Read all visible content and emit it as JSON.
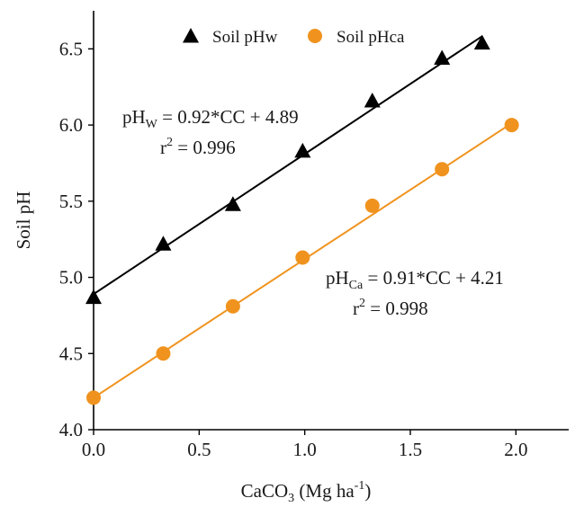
{
  "chart_data": {
    "type": "scatter",
    "xlabel": "CaCO₃ (Mg ha⁻¹)",
    "xlabel_parts": {
      "base": "CaCO",
      "sub": "3",
      "mid": " (Mg ha",
      "sup": "-1",
      "end": ")"
    },
    "ylabel": "Soil pH",
    "xlim": [
      0.0,
      2.25
    ],
    "ylim": [
      4.0,
      6.75
    ],
    "xticks": [
      "0.0",
      "0.5",
      "1.0",
      "1.5",
      "2.0"
    ],
    "yticks": [
      "4.0",
      "4.5",
      "5.0",
      "5.5",
      "6.0",
      "6.5"
    ],
    "legend_position": "top",
    "series": [
      {
        "name": "Soil pHw",
        "marker": "triangle",
        "color": "#000000",
        "x": [
          0.0,
          0.33,
          0.66,
          0.99,
          1.32,
          1.65,
          1.84
        ],
        "y": [
          4.87,
          5.22,
          5.48,
          5.83,
          6.16,
          6.44,
          6.54
        ],
        "fit": {
          "slope": 0.92,
          "intercept": 4.89,
          "x_range": [
            0.0,
            1.84
          ]
        }
      },
      {
        "name": "Soil pHca",
        "marker": "circle",
        "color": "#f0931e",
        "x": [
          0.0,
          0.33,
          0.66,
          0.99,
          1.32,
          1.65,
          1.98
        ],
        "y": [
          4.21,
          4.5,
          4.81,
          5.13,
          5.47,
          5.71,
          6.0
        ],
        "fit": {
          "slope": 0.91,
          "intercept": 4.21,
          "x_range": [
            0.0,
            1.98
          ]
        }
      }
    ],
    "annotations": [
      {
        "id": "w",
        "base": "pH",
        "sub": "W",
        "equation": " = 0.92*CC + 4.89",
        "r2": "0.996"
      },
      {
        "id": "ca",
        "base": "pH",
        "sub": "Ca",
        "equation": " = 0.91*CC + 4.21",
        "r2": "0.998"
      }
    ]
  }
}
